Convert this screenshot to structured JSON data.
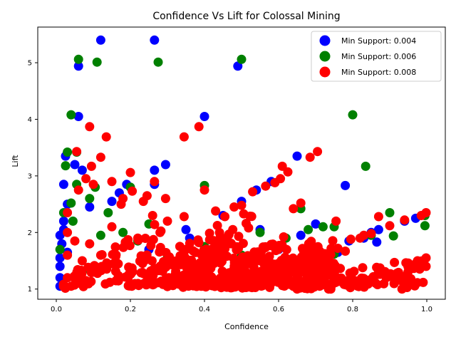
{
  "chart_data": {
    "type": "scatter",
    "title": "Confidence Vs Lift for Colossal Mining",
    "xlabel": "Confidence",
    "ylabel": "Lift",
    "xlim": [
      -0.05,
      1.05
    ],
    "ylim": [
      0.82,
      5.63
    ],
    "xticks": [
      0.0,
      0.2,
      0.4,
      0.6,
      0.8,
      1.0
    ],
    "xtick_labels": [
      "0.0",
      "0.2",
      "0.4",
      "0.6",
      "0.8",
      "1.0"
    ],
    "yticks": [
      1,
      2,
      3,
      4,
      5
    ],
    "ytick_labels": [
      "1",
      "2",
      "3",
      "4",
      "5"
    ],
    "grid": false,
    "legend_position": "top-right",
    "series": [
      {
        "name": "Min Support: 0.004",
        "color": "#0000ff",
        "points": [
          [
            0.12,
            5.4
          ],
          [
            0.265,
            5.4
          ],
          [
            0.06,
            4.94
          ],
          [
            0.49,
            4.94
          ],
          [
            0.06,
            4.05
          ],
          [
            0.4,
            4.05
          ],
          [
            0.025,
            3.35
          ],
          [
            0.65,
            3.35
          ],
          [
            0.05,
            3.2
          ],
          [
            0.295,
            3.2
          ],
          [
            0.07,
            3.1
          ],
          [
            0.265,
            3.1
          ],
          [
            0.02,
            2.85
          ],
          [
            0.265,
            2.85
          ],
          [
            0.19,
            2.85
          ],
          [
            0.58,
            2.9
          ],
          [
            0.78,
            2.83
          ],
          [
            0.03,
            2.5
          ],
          [
            0.5,
            2.55
          ],
          [
            0.54,
            2.75
          ],
          [
            0.02,
            2.2
          ],
          [
            0.7,
            2.15
          ],
          [
            0.87,
            2.05
          ],
          [
            0.85,
            2.0
          ],
          [
            0.865,
            1.83
          ],
          [
            0.94,
            2.2
          ],
          [
            0.79,
            1.85
          ],
          [
            0.97,
            2.25
          ],
          [
            0.01,
            1.55
          ],
          [
            0.01,
            1.4
          ],
          [
            0.01,
            1.2
          ],
          [
            0.01,
            1.05
          ],
          [
            0.015,
            1.8
          ],
          [
            0.01,
            1.95
          ],
          [
            0.02,
            2.05
          ],
          [
            0.03,
            1.65
          ],
          [
            0.35,
            2.05
          ],
          [
            0.36,
            1.9
          ],
          [
            0.42,
            1.55
          ],
          [
            0.45,
            2.3
          ],
          [
            0.55,
            2.05
          ],
          [
            0.6,
            1.7
          ],
          [
            0.66,
            1.95
          ],
          [
            0.72,
            1.6
          ],
          [
            0.76,
            1.65
          ],
          [
            0.83,
            1.9
          ],
          [
            0.3,
            1.45
          ],
          [
            0.25,
            1.7
          ],
          [
            0.15,
            2.55
          ],
          [
            0.17,
            2.7
          ],
          [
            0.09,
            2.45
          ],
          [
            0.1,
            1.3
          ]
        ]
      },
      {
        "name": "Min Support: 0.006",
        "color": "#008000",
        "points": [
          [
            0.06,
            5.06
          ],
          [
            0.5,
            5.06
          ],
          [
            0.11,
            5.01
          ],
          [
            0.275,
            5.01
          ],
          [
            0.04,
            4.08
          ],
          [
            0.8,
            4.08
          ],
          [
            0.03,
            3.42
          ],
          [
            0.055,
            3.42
          ],
          [
            0.025,
            3.18
          ],
          [
            0.835,
            3.17
          ],
          [
            0.4,
            2.83
          ],
          [
            0.2,
            2.8
          ],
          [
            0.055,
            2.85
          ],
          [
            0.105,
            2.8
          ],
          [
            0.04,
            2.52
          ],
          [
            0.66,
            2.42
          ],
          [
            0.75,
            2.1
          ],
          [
            0.72,
            2.1
          ],
          [
            0.9,
            2.35
          ],
          [
            0.91,
            1.94
          ],
          [
            0.995,
            2.12
          ],
          [
            0.995,
            2.3
          ],
          [
            0.62,
            1.9
          ],
          [
            0.75,
            1.62
          ],
          [
            0.55,
            2.0
          ],
          [
            0.25,
            2.15
          ],
          [
            0.18,
            2.0
          ],
          [
            0.02,
            2.35
          ],
          [
            0.09,
            2.6
          ],
          [
            0.12,
            1.95
          ],
          [
            0.4,
            1.75
          ],
          [
            0.3,
            1.55
          ],
          [
            0.045,
            2.2
          ],
          [
            0.01,
            1.7
          ],
          [
            0.5,
            1.6
          ],
          [
            0.68,
            2.05
          ],
          [
            0.85,
            1.95
          ],
          [
            0.22,
            1.85
          ],
          [
            0.14,
            2.35
          ],
          [
            0.07,
            1.3
          ]
        ]
      },
      {
        "name": "Min Support: 0.008",
        "color": "#ff0000",
        "points": [
          [
            0.055,
            3.43
          ],
          [
            0.705,
            3.43
          ],
          [
            0.685,
            3.33
          ],
          [
            0.12,
            3.33
          ],
          [
            0.09,
            3.87
          ],
          [
            0.385,
            3.87
          ],
          [
            0.135,
            3.69
          ],
          [
            0.345,
            3.69
          ],
          [
            0.095,
            3.17
          ],
          [
            0.61,
            3.17
          ],
          [
            0.625,
            3.07
          ],
          [
            0.2,
            3.06
          ],
          [
            0.15,
            2.9
          ],
          [
            0.265,
            2.9
          ],
          [
            0.605,
            2.95
          ],
          [
            0.59,
            2.88
          ],
          [
            0.565,
            2.82
          ],
          [
            0.295,
            2.6
          ],
          [
            0.4,
            2.75
          ],
          [
            0.53,
            2.72
          ],
          [
            0.66,
            2.52
          ],
          [
            0.64,
            2.42
          ],
          [
            0.205,
            2.73
          ],
          [
            0.18,
            2.6
          ],
          [
            0.175,
            2.5
          ],
          [
            0.235,
            2.55
          ],
          [
            0.245,
            2.65
          ],
          [
            0.1,
            2.85
          ],
          [
            0.08,
            2.95
          ],
          [
            0.06,
            2.75
          ],
          [
            0.43,
            2.38
          ],
          [
            0.455,
            2.28
          ],
          [
            0.48,
            2.45
          ],
          [
            0.5,
            2.48
          ],
          [
            0.345,
            2.28
          ],
          [
            0.87,
            2.28
          ],
          [
            0.9,
            2.12
          ],
          [
            0.94,
            2.22
          ],
          [
            0.985,
            2.3
          ],
          [
            0.998,
            2.35
          ],
          [
            0.83,
            1.95
          ],
          [
            0.85,
            1.98
          ],
          [
            0.795,
            1.88
          ],
          [
            0.82,
            1.9
          ],
          [
            0.755,
            2.2
          ],
          [
            0.76,
            1.72
          ],
          [
            0.78,
            1.67
          ],
          [
            0.998,
            1.55
          ],
          [
            0.998,
            1.4
          ],
          [
            0.975,
            1.5
          ],
          [
            0.95,
            1.46
          ],
          [
            0.35,
            1.7
          ],
          [
            0.3,
            2.2
          ],
          [
            0.28,
            2.0
          ],
          [
            0.26,
            2.3
          ],
          [
            0.22,
            1.9
          ],
          [
            0.15,
            2.1
          ],
          [
            0.12,
            1.6
          ],
          [
            0.03,
            2.35
          ],
          [
            0.03,
            2.0
          ],
          [
            0.03,
            1.6
          ],
          [
            0.03,
            1.2
          ],
          [
            0.05,
            1.85
          ],
          [
            0.07,
            1.5
          ],
          [
            0.09,
            1.8
          ],
          [
            0.04,
            1.05
          ],
          [
            0.25,
            1.25
          ],
          [
            0.4,
            1.3
          ],
          [
            0.55,
            1.5
          ]
        ]
      }
    ],
    "bands": [
      {
        "series": 2,
        "x0": 0.025,
        "y0": 1.02,
        "x1": 0.55,
        "y1": 2.4,
        "width": 0.2
      },
      {
        "series": 2,
        "x0": 0.3,
        "y0": 1.02,
        "x1": 0.75,
        "y1": 1.95,
        "width": 0.08
      },
      {
        "series": 2,
        "x0": 0.35,
        "y0": 1.02,
        "x1": 0.7,
        "y1": 1.6,
        "width": 0.06
      },
      {
        "series": 2,
        "x0": 0.45,
        "y0": 1.02,
        "x1": 0.76,
        "y1": 1.5,
        "width": 0.05
      },
      {
        "series": 2,
        "x0": 0.5,
        "y0": 1.02,
        "x1": 0.99,
        "y1": 1.55,
        "width": 0.04
      },
      {
        "series": 2,
        "x0": 0.65,
        "y0": 1.0,
        "x1": 0.99,
        "y1": 1.4,
        "width": 0.03
      },
      {
        "series": 2,
        "x0": 0.38,
        "y0": 1.4,
        "x1": 0.52,
        "y1": 2.45,
        "width": 0.02
      },
      {
        "series": 2,
        "x0": 0.25,
        "y0": 1.3,
        "x1": 0.45,
        "y1": 2.2,
        "width": 0.03
      },
      {
        "series": 2,
        "x0": 0.45,
        "y0": 1.2,
        "x1": 0.62,
        "y1": 2.15,
        "width": 0.02
      },
      {
        "series": 2,
        "x0": 0.55,
        "y0": 1.25,
        "x1": 0.72,
        "y1": 1.95,
        "width": 0.02
      },
      {
        "series": 2,
        "x0": 0.6,
        "y0": 1.3,
        "x1": 0.75,
        "y1": 1.9,
        "width": 0.02
      },
      {
        "series": 2,
        "x0": 0.04,
        "y0": 1.2,
        "x1": 0.28,
        "y1": 2.2,
        "width": 0.1
      },
      {
        "series": 2,
        "x0": 0.2,
        "y0": 1.05,
        "x1": 0.4,
        "y1": 1.3,
        "width": 0.12
      }
    ]
  }
}
